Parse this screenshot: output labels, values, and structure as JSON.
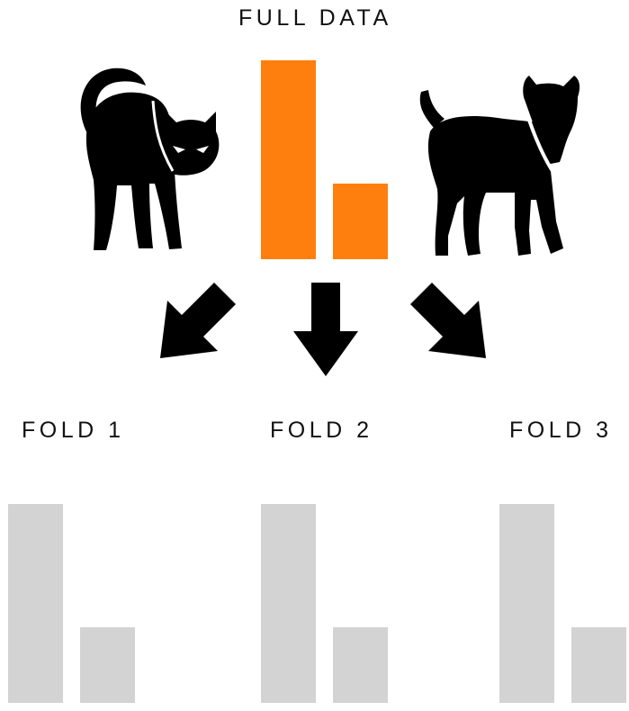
{
  "title": "FULL DATA",
  "full_data": {
    "categories": [
      "cat",
      "dog"
    ],
    "values": [
      1.0,
      0.38
    ],
    "color": "#FF7F0E"
  },
  "folds": [
    {
      "label": "FOLD 1",
      "values": [
        1.0,
        0.38
      ]
    },
    {
      "label": "FOLD 2",
      "values": [
        1.0,
        0.38
      ]
    },
    {
      "label": "FOLD 3",
      "values": [
        1.0,
        0.38
      ]
    }
  ],
  "fold_color": "#D3D3D3",
  "icons": [
    "cat-icon",
    "dog-icon",
    "arrow-down-left-icon",
    "arrow-down-icon",
    "arrow-down-right-icon"
  ]
}
